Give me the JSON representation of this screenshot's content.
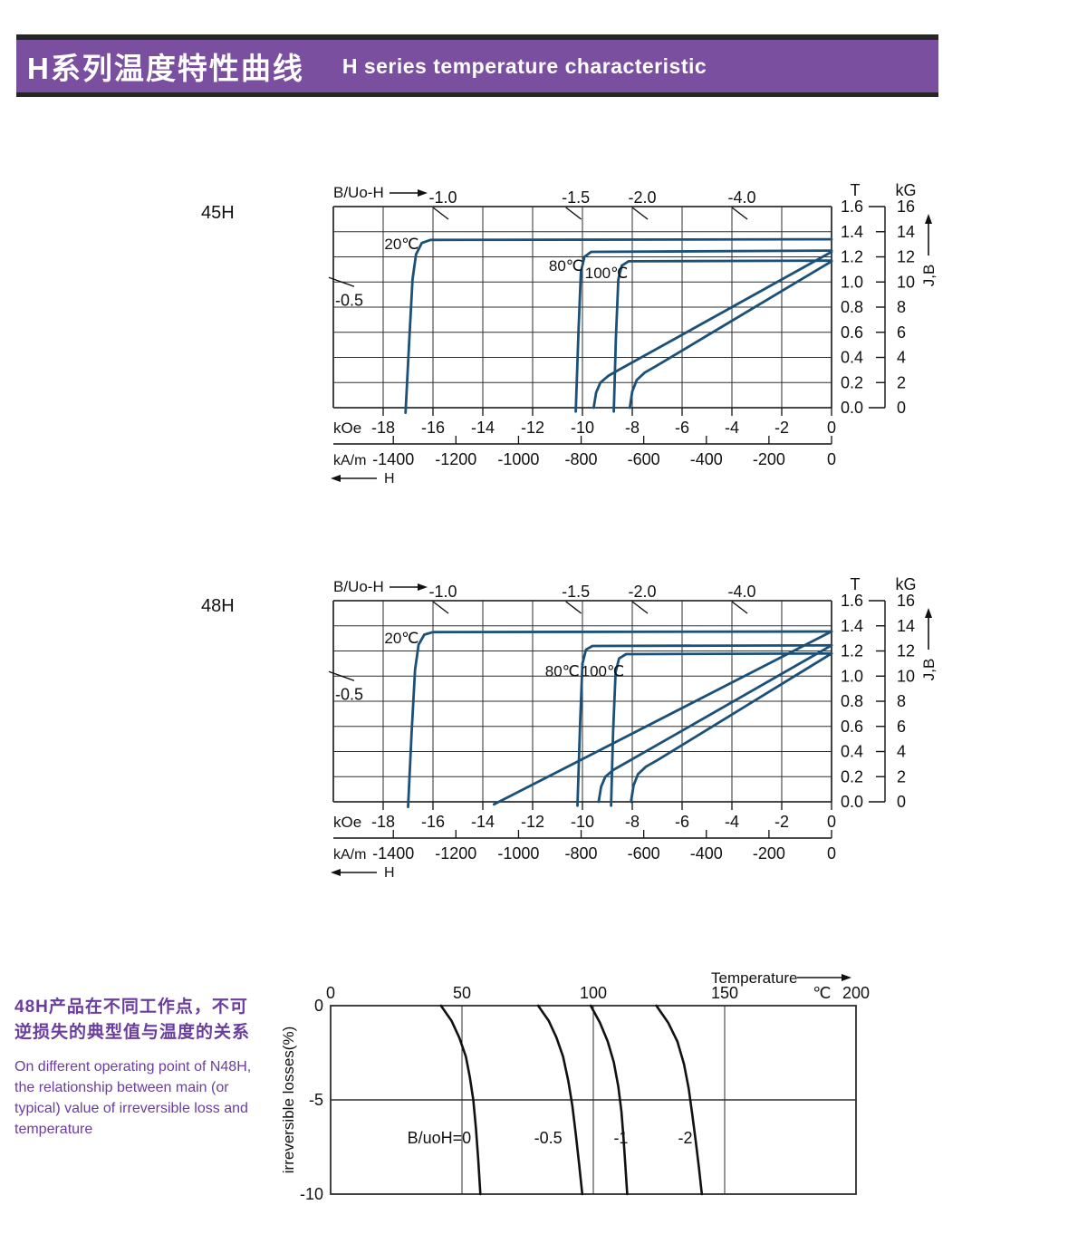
{
  "header": {
    "title_zh": "H系列温度特性曲线",
    "title_en": "H  series temperature characteristic",
    "bg": "#7a4f9f",
    "band_color": "#262626",
    "text_color": "#ffffff"
  },
  "sidebar": {
    "zh_lines": [
      "48H产品在不同工作点，不可",
      "逆损失的典型值与温度的关系"
    ],
    "en_lines": [
      "On different operating point of N48H,",
      "the relationship between main (or",
      "typical) value of irreversible loss and",
      "temperature"
    ],
    "text_color": "#6a3d9e"
  },
  "chart_data": [
    {
      "type": "line",
      "id": "bh-45h",
      "grade_label": "45H",
      "axis_label": "B/Uo-H",
      "h_arrow_label": "H",
      "koe_unit": "kOe",
      "kam_unit": "kA/m",
      "t_header": "T",
      "kg_header": "kG",
      "jb_label": "J,B",
      "h_range_koe": [
        -20,
        0
      ],
      "b_range_t": [
        0,
        1.6
      ],
      "grid": true,
      "koe_ticks": [
        -18,
        -16,
        -14,
        -12,
        -10,
        -8,
        -6,
        -4,
        -2,
        0
      ],
      "kam_ticks": [
        -1400,
        -1200,
        -1000,
        -800,
        -600,
        -400,
        -200,
        0
      ],
      "t_ticks": [
        "1.6",
        "1.4",
        "1.2",
        "1.0",
        "0.8",
        "0.6",
        "0.4",
        "0.2",
        "0.0"
      ],
      "kg_ticks": [
        "16",
        "14",
        "12",
        "10",
        "8",
        "6",
        "4",
        "2",
        "0"
      ],
      "load_lines": [
        {
          "label": "-1.0",
          "ratio": 1.0
        },
        {
          "label": "-1.5",
          "ratio": 1.5
        },
        {
          "label": "-2.0",
          "ratio": 2.0
        },
        {
          "label": "-4.0",
          "ratio": 4.0
        },
        {
          "label": "-0.5",
          "ratio": 0.5
        }
      ],
      "curve_color": "#1b5078",
      "curves": [
        {
          "name": "J-20C",
          "label": "20℃",
          "label_pos": [
            -17.95,
            1.26
          ],
          "points": [
            [
              -17.1,
              -0.04
            ],
            [
              -16.95,
              0.55
            ],
            [
              -16.82,
              1.02
            ],
            [
              -16.68,
              1.22
            ],
            [
              -16.45,
              1.31
            ],
            [
              -16.1,
              1.335
            ],
            [
              0,
              1.34
            ]
          ]
        },
        {
          "name": "J-80C",
          "label": "80℃",
          "label_pos": [
            -11.35,
            1.09
          ],
          "points": [
            [
              -10.27,
              -0.03
            ],
            [
              -10.16,
              0.6
            ],
            [
              -10.06,
              1.08
            ],
            [
              -9.92,
              1.2
            ],
            [
              -9.65,
              1.24
            ],
            [
              0,
              1.25
            ]
          ]
        },
        {
          "name": "J-100C",
          "label": "100℃",
          "label_pos": [
            -9.9,
            1.03
          ],
          "points": [
            [
              -8.74,
              -0.03
            ],
            [
              -8.66,
              0.55
            ],
            [
              -8.56,
              1.02
            ],
            [
              -8.42,
              1.13
            ],
            [
              -8.15,
              1.165
            ],
            [
              0,
              1.17
            ]
          ]
        },
        {
          "name": "B-80C",
          "points": [
            [
              -9.55,
              0
            ],
            [
              -9.45,
              0.12
            ],
            [
              -9.28,
              0.2
            ],
            [
              -8.95,
              0.255
            ],
            [
              -8.55,
              0.3
            ],
            [
              0,
              1.24
            ]
          ]
        },
        {
          "name": "B-100C",
          "points": [
            [
              -8.1,
              0
            ],
            [
              -8.0,
              0.13
            ],
            [
              -7.82,
              0.22
            ],
            [
              -7.5,
              0.28
            ],
            [
              -7.05,
              0.33
            ],
            [
              0,
              1.165
            ]
          ]
        }
      ]
    },
    {
      "type": "line",
      "id": "bh-48h",
      "grade_label": "48H",
      "axis_label": "B/Uo-H",
      "h_arrow_label": "H",
      "koe_unit": "kOe",
      "kam_unit": "kA/m",
      "t_header": "T",
      "kg_header": "kG",
      "jb_label": "J,B",
      "h_range_koe": [
        -20,
        0
      ],
      "b_range_t": [
        0,
        1.6
      ],
      "grid": true,
      "koe_ticks": [
        -18,
        -16,
        -14,
        -12,
        -10,
        -8,
        -6,
        -4,
        -2,
        0
      ],
      "kam_ticks": [
        -1400,
        -1200,
        -1000,
        -800,
        -600,
        -400,
        -200,
        0
      ],
      "t_ticks": [
        "1.6",
        "1.4",
        "1.2",
        "1.0",
        "0.8",
        "0.6",
        "0.4",
        "0.2",
        "0.0"
      ],
      "kg_ticks": [
        "16",
        "14",
        "12",
        "10",
        "8",
        "6",
        "4",
        "2",
        "0"
      ],
      "load_lines": [
        {
          "label": "-1.0",
          "ratio": 1.0
        },
        {
          "label": "-1.5",
          "ratio": 1.5
        },
        {
          "label": "-2.0",
          "ratio": 2.0
        },
        {
          "label": "-4.0",
          "ratio": 4.0
        },
        {
          "label": "-0.5",
          "ratio": 0.5
        }
      ],
      "curve_color": "#1b5078",
      "curves": [
        {
          "name": "J-20C",
          "label": "20℃",
          "label_pos": [
            -17.95,
            1.26
          ],
          "points": [
            [
              -17.0,
              -0.04
            ],
            [
              -16.86,
              0.55
            ],
            [
              -16.72,
              1.05
            ],
            [
              -16.58,
              1.25
            ],
            [
              -16.35,
              1.33
            ],
            [
              -16.0,
              1.35
            ],
            [
              0,
              1.355
            ]
          ]
        },
        {
          "name": "J-80C",
          "label": "80℃",
          "label_pos": [
            -11.5,
            1.0
          ],
          "points": [
            [
              -10.2,
              -0.03
            ],
            [
              -10.1,
              0.6
            ],
            [
              -10.0,
              1.1
            ],
            [
              -9.86,
              1.21
            ],
            [
              -9.6,
              1.24
            ],
            [
              0,
              1.245
            ]
          ]
        },
        {
          "name": "J-100C",
          "label": "100℃",
          "label_pos": [
            -10.05,
            1.0
          ],
          "points": [
            [
              -8.85,
              -0.03
            ],
            [
              -8.77,
              0.55
            ],
            [
              -8.67,
              1.03
            ],
            [
              -8.53,
              1.14
            ],
            [
              -8.25,
              1.175
            ],
            [
              0,
              1.18
            ]
          ]
        },
        {
          "name": "B-20C",
          "points": [
            [
              -13.55,
              -0.02
            ],
            [
              0,
              1.355
            ]
          ]
        },
        {
          "name": "B-80C",
          "points": [
            [
              -9.35,
              0
            ],
            [
              -9.25,
              0.12
            ],
            [
              -9.08,
              0.2
            ],
            [
              -8.75,
              0.255
            ],
            [
              -8.35,
              0.3
            ],
            [
              0,
              1.245
            ]
          ]
        },
        {
          "name": "B-100C",
          "points": [
            [
              -8.05,
              0
            ],
            [
              -7.95,
              0.13
            ],
            [
              -7.77,
              0.22
            ],
            [
              -7.45,
              0.28
            ],
            [
              -7.0,
              0.33
            ],
            [
              0,
              1.18
            ]
          ]
        }
      ]
    },
    {
      "type": "line",
      "id": "irreversible-loss",
      "x_axis_label": "Temperature",
      "x_unit": "℃",
      "y_axis_label": "irreversible  losses(%)",
      "x_range": [
        0,
        200
      ],
      "y_range": [
        -10,
        0
      ],
      "grid": true,
      "x_ticks": [
        "0",
        "50",
        "100",
        "150",
        "200"
      ],
      "y_ticks": [
        "0",
        "-5",
        "-10"
      ],
      "curve_color": "#111111",
      "curves": [
        {
          "name": "B-uoH-0",
          "label": "B/uoH=0",
          "label_pos": [
            53.5,
            -7.3
          ],
          "label_anchor": "end",
          "points": [
            [
              42,
              0
            ],
            [
              46,
              -0.8
            ],
            [
              49,
              -1.7
            ],
            [
              51.5,
              -2.7
            ],
            [
              53,
              -3.8
            ],
            [
              54.3,
              -5
            ],
            [
              55.3,
              -6.5
            ],
            [
              56.2,
              -8.2
            ],
            [
              57,
              -10
            ]
          ]
        },
        {
          "name": "B-uoH-0.5",
          "label": "-0.5",
          "label_pos": [
            82.8,
            -7.3
          ],
          "label_anchor": "middle",
          "points": [
            [
              79,
              0
            ],
            [
              83,
              -0.8
            ],
            [
              86,
              -1.7
            ],
            [
              88.5,
              -2.7
            ],
            [
              90.5,
              -4
            ],
            [
              92,
              -5.3
            ],
            [
              93.3,
              -6.8
            ],
            [
              94.6,
              -8.4
            ],
            [
              95.8,
              -10
            ]
          ]
        },
        {
          "name": "B-uoH-1",
          "label": "-1",
          "label_pos": [
            110.5,
            -7.3
          ],
          "label_anchor": "middle",
          "points": [
            [
              99,
              0
            ],
            [
              102.5,
              -0.9
            ],
            [
              105.5,
              -1.9
            ],
            [
              107.8,
              -3
            ],
            [
              109.5,
              -4.3
            ],
            [
              110.7,
              -5.6
            ],
            [
              111.5,
              -7
            ],
            [
              112.2,
              -8.5
            ],
            [
              112.9,
              -10
            ]
          ]
        },
        {
          "name": "B-uoH-2",
          "label": "-2",
          "label_pos": [
            135,
            -7.3
          ],
          "label_anchor": "middle",
          "points": [
            [
              124,
              0
            ],
            [
              128.5,
              -0.9
            ],
            [
              132,
              -1.9
            ],
            [
              134.5,
              -3.1
            ],
            [
              136.3,
              -4.4
            ],
            [
              137.7,
              -5.8
            ],
            [
              139,
              -7.2
            ],
            [
              140.2,
              -8.6
            ],
            [
              141.3,
              -10
            ]
          ]
        }
      ]
    }
  ]
}
